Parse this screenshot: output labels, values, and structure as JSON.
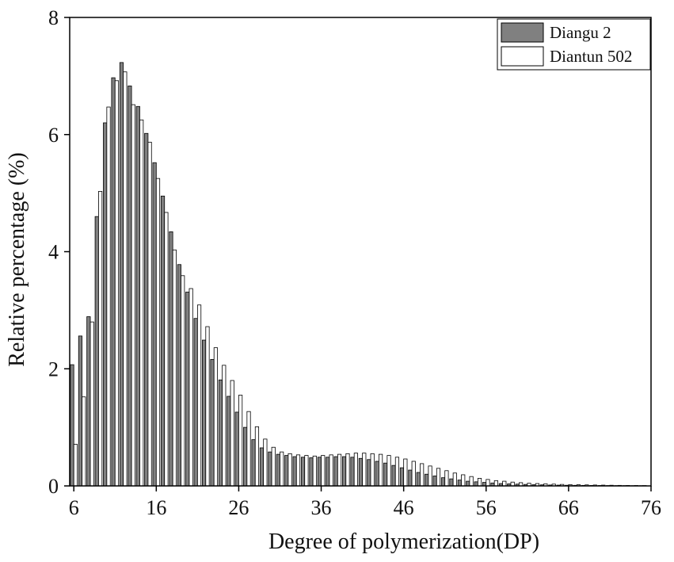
{
  "chart_data": {
    "type": "bar",
    "title": "",
    "xlabel": "Degree of polymerization(DP)",
    "ylabel": "Relative percentage (%)",
    "xlim": [
      5.5,
      76
    ],
    "ylim": [
      0,
      8
    ],
    "x_ticks": [
      6,
      16,
      26,
      36,
      46,
      56,
      66,
      76
    ],
    "y_ticks": [
      0,
      2,
      4,
      6,
      8
    ],
    "legend_position": "top-right",
    "grid": false,
    "x": [
      6,
      7,
      8,
      9,
      10,
      11,
      12,
      13,
      14,
      15,
      16,
      17,
      18,
      19,
      20,
      21,
      22,
      23,
      24,
      25,
      26,
      27,
      28,
      29,
      30,
      31,
      32,
      33,
      34,
      35,
      36,
      37,
      38,
      39,
      40,
      41,
      42,
      43,
      44,
      45,
      46,
      47,
      48,
      49,
      50,
      51,
      52,
      53,
      54,
      55,
      56,
      57,
      58,
      59,
      60,
      61,
      62,
      63,
      64,
      65,
      66,
      67,
      68,
      69,
      70,
      71,
      72,
      73,
      74,
      75
    ],
    "series": [
      {
        "name": "Diangu 2",
        "color": "#808080",
        "values": [
          2.07,
          2.56,
          2.89,
          4.6,
          6.2,
          6.97,
          7.23,
          6.83,
          6.48,
          6.02,
          5.52,
          4.95,
          4.34,
          3.78,
          3.31,
          2.86,
          2.49,
          2.16,
          1.81,
          1.53,
          1.26,
          1.0,
          0.79,
          0.65,
          0.58,
          0.54,
          0.52,
          0.5,
          0.49,
          0.48,
          0.49,
          0.49,
          0.5,
          0.5,
          0.49,
          0.47,
          0.45,
          0.42,
          0.39,
          0.35,
          0.31,
          0.27,
          0.23,
          0.2,
          0.17,
          0.14,
          0.12,
          0.1,
          0.08,
          0.07,
          0.06,
          0.05,
          0.04,
          0.035,
          0.03,
          0.025,
          0.02,
          0.018,
          0.015,
          0.013,
          0.011,
          0.01,
          0.009,
          0.008,
          0.007,
          0.006,
          0.005,
          0.005,
          0.004,
          0.004
        ]
      },
      {
        "name": "Diantun 502",
        "color": "#ffffff",
        "values": [
          0.71,
          1.52,
          2.8,
          5.03,
          6.47,
          6.92,
          7.07,
          6.51,
          6.25,
          5.87,
          5.25,
          4.67,
          4.03,
          3.59,
          3.37,
          3.09,
          2.72,
          2.36,
          2.06,
          1.8,
          1.55,
          1.27,
          1.01,
          0.8,
          0.66,
          0.58,
          0.55,
          0.53,
          0.52,
          0.51,
          0.52,
          0.53,
          0.54,
          0.55,
          0.56,
          0.56,
          0.55,
          0.54,
          0.52,
          0.49,
          0.46,
          0.42,
          0.38,
          0.34,
          0.3,
          0.26,
          0.22,
          0.19,
          0.16,
          0.13,
          0.11,
          0.09,
          0.08,
          0.065,
          0.055,
          0.045,
          0.04,
          0.035,
          0.03,
          0.025,
          0.022,
          0.02,
          0.017,
          0.015,
          0.013,
          0.011,
          0.009,
          0.008,
          0.007,
          0.006
        ]
      }
    ]
  }
}
